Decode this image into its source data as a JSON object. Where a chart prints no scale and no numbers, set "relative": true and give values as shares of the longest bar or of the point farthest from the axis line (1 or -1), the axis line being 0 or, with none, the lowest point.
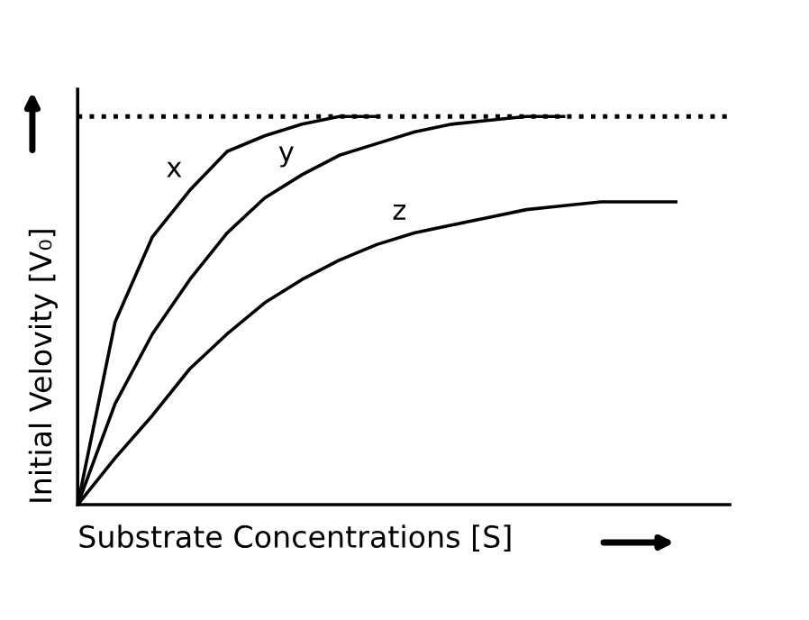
{
  "chart_data": {
    "type": "line",
    "relative": true,
    "xlabel": "Substrate Concentrations [S]",
    "ylabel": "Initial Velovity [V₀]",
    "categories": [
      null,
      null,
      null,
      null,
      null,
      null,
      null,
      null,
      null,
      null,
      null,
      null,
      null,
      null,
      null,
      null,
      null
    ],
    "series": [
      {
        "name": "x",
        "color": "#000000",
        "values": [
          0,
          0.47,
          0.69,
          0.81,
          0.91,
          0.95,
          0.98,
          1.0,
          1.0,
          null,
          null,
          null,
          null,
          null,
          null,
          null,
          null
        ]
      },
      {
        "name": "y",
        "color": "#000000",
        "values": [
          0,
          0.26,
          0.44,
          0.58,
          0.7,
          0.79,
          0.85,
          0.9,
          0.93,
          0.96,
          0.98,
          0.99,
          1.0,
          1.0,
          null,
          null,
          null
        ]
      },
      {
        "name": "z",
        "color": "#000000",
        "values": [
          0,
          0.12,
          0.23,
          0.35,
          0.44,
          0.52,
          0.58,
          0.63,
          0.67,
          0.7,
          0.72,
          0.74,
          0.76,
          0.77,
          0.78,
          0.78,
          0.78
        ]
      }
    ],
    "ref_lines": [
      {
        "axis": "y",
        "value": 1.0,
        "color": "#000000",
        "line_style": "dotted"
      }
    ],
    "legend": false,
    "marker": "none",
    "line_style": "solid"
  }
}
